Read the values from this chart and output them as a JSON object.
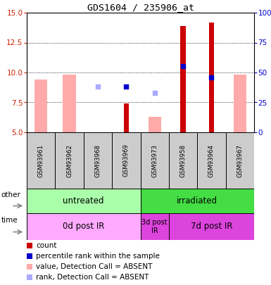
{
  "title": "GDS1604 / 235906_at",
  "samples": [
    "GSM93961",
    "GSM93962",
    "GSM93968",
    "GSM93969",
    "GSM93973",
    "GSM93958",
    "GSM93964",
    "GSM93967"
  ],
  "ylim": [
    5,
    15
  ],
  "y_left_ticks": [
    5,
    7.5,
    10,
    12.5,
    15
  ],
  "y_right_labels": [
    "0",
    "25",
    "50",
    "75",
    "100%"
  ],
  "count_values": [
    null,
    null,
    null,
    7.4,
    null,
    13.9,
    14.2,
    null
  ],
  "count_color": "#cc0000",
  "rank_values": [
    null,
    null,
    null,
    8.8,
    null,
    10.5,
    9.6,
    null
  ],
  "rank_color": "#0000cc",
  "value_absent_values": [
    9.4,
    9.8,
    null,
    null,
    6.3,
    null,
    null,
    9.8
  ],
  "value_absent_color": "#ffaaaa",
  "rank_absent_values": [
    null,
    null,
    8.8,
    null,
    8.3,
    null,
    null,
    null
  ],
  "rank_absent_color": "#aaaaff",
  "other_groups": [
    {
      "label": "untreated",
      "start": 0,
      "end": 4,
      "color": "#aaffaa"
    },
    {
      "label": "irradiated",
      "start": 4,
      "end": 8,
      "color": "#44dd44"
    }
  ],
  "time_groups": [
    {
      "label": "0d post IR",
      "start": 0,
      "end": 4,
      "color": "#ffaaff"
    },
    {
      "label": "3d post\nIR",
      "start": 4,
      "end": 5,
      "color": "#dd44dd"
    },
    {
      "label": "7d post IR",
      "start": 5,
      "end": 8,
      "color": "#dd44dd"
    }
  ],
  "legend_items": [
    {
      "color": "#cc0000",
      "label": "count"
    },
    {
      "color": "#0000cc",
      "label": "percentile rank within the sample"
    },
    {
      "color": "#ffaaaa",
      "label": "value, Detection Call = ABSENT"
    },
    {
      "color": "#aaaaff",
      "label": "rank, Detection Call = ABSENT"
    }
  ],
  "bg_color": "#ffffff",
  "tick_color_left": "#cc2200",
  "tick_color_right": "#0000cc"
}
